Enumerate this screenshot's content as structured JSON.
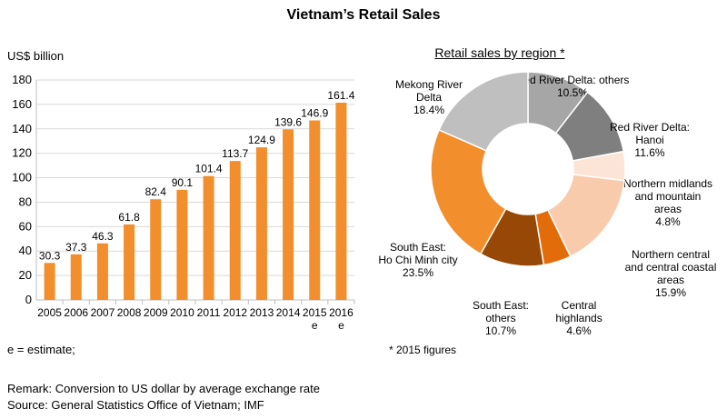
{
  "title": "Vietnam’s Retail Sales",
  "chart_data": [
    {
      "type": "bar",
      "ylabel": "US$ billion",
      "ylim": [
        0,
        180
      ],
      "yticks": [
        0,
        20,
        40,
        60,
        80,
        100,
        120,
        140,
        160,
        180
      ],
      "categories": [
        "2005",
        "2006",
        "2007",
        "2008",
        "2009",
        "2010",
        "2011",
        "2012",
        "2013",
        "2014",
        "2015",
        "2016"
      ],
      "category_notes": [
        "",
        "",
        "",
        "",
        "",
        "",
        "",
        "",
        "",
        "",
        "e",
        "e"
      ],
      "values": [
        30.3,
        37.3,
        46.3,
        61.8,
        82.4,
        90.1,
        101.4,
        113.7,
        124.9,
        139.6,
        146.9,
        161.4
      ],
      "value_labels": [
        "30.3",
        "37.3",
        "46.3",
        "61.8",
        "82.4",
        "90.1",
        "101.4",
        "113.7",
        "124.9",
        "139.6",
        "146.9",
        "161.4"
      ],
      "grid": "horizontal",
      "bar_color": "#F28E2B"
    },
    {
      "type": "pie",
      "subtype": "donut",
      "title": "Retail sales by region *",
      "slices": [
        {
          "label_lines": [
            "Red River Delta: others",
            "10.5%"
          ],
          "value": 10.5,
          "color": "#A6A6A6"
        },
        {
          "label_lines": [
            "Red River Delta:",
            "Hanoi",
            "11.6%"
          ],
          "value": 11.6,
          "color": "#7F7F7F"
        },
        {
          "label_lines": [
            "Northern midlands",
            "and mountain",
            "areas",
            "4.8%"
          ],
          "value": 4.8,
          "color": "#FCE4D6"
        },
        {
          "label_lines": [
            "Northern central",
            "and central coastal",
            "areas",
            "15.9%"
          ],
          "value": 15.9,
          "color": "#F8CBAD"
        },
        {
          "label_lines": [
            "Central",
            "highlands",
            "4.6%"
          ],
          "value": 4.6,
          "color": "#E36C0A"
        },
        {
          "label_lines": [
            "South East:",
            "others",
            "10.7%"
          ],
          "value": 10.7,
          "color": "#974806"
        },
        {
          "label_lines": [
            "South East:",
            "Ho Chi Minh city",
            "23.5%"
          ],
          "value": 23.5,
          "color": "#F28E2B"
        },
        {
          "label_lines": [
            "Mekong River",
            "Delta",
            "18.4%"
          ],
          "value": 18.4,
          "color": "#BFBFBF"
        }
      ]
    }
  ],
  "notes": {
    "estimate": "e = estimate;",
    "remark": "Remark: Conversion to US dollar by average exchange rate",
    "source": "Source: General Statistics Office of Vietnam; IMF",
    "footnote": "* 2015 figures"
  }
}
